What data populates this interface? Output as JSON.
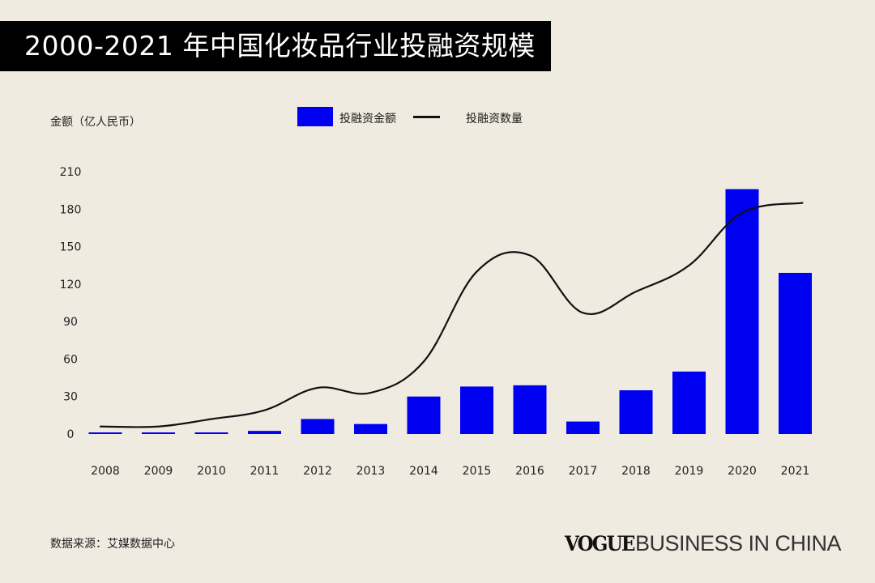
{
  "title": "2000-2021 年中国化妆品行业投融资规模",
  "unit_label": "金额（亿人民币）",
  "legend": {
    "bar_label": "投融资金额",
    "line_label": "投融资数量"
  },
  "source": "数据来源：艾媒数据中心",
  "brand": {
    "vogue": "VOGUE",
    "rest": "BUSINESS IN CHINA"
  },
  "colors": {
    "background": "#f0ebe1",
    "bar": "#0000f0",
    "line": "#111111",
    "title_bg": "#000000"
  },
  "chart_data": {
    "type": "bar",
    "title": "2000-2021 年中国化妆品行业投融资规模",
    "xlabel": "",
    "ylabel": "金额（亿人民币）",
    "ylim": [
      0,
      210
    ],
    "yticks": [
      0,
      30,
      60,
      90,
      120,
      150,
      180,
      210
    ],
    "grid": false,
    "legend_position": "top-center",
    "categories": [
      "2008",
      "2009",
      "2010",
      "2011",
      "2012",
      "2013",
      "2014",
      "2015",
      "2016",
      "2017",
      "2018",
      "2019",
      "2020",
      "2021"
    ],
    "series": [
      {
        "name": "投融资金额",
        "type": "bar",
        "values": [
          1,
          1,
          1,
          2.5,
          12,
          8,
          30,
          38,
          39,
          10,
          35,
          50,
          196,
          129
        ]
      },
      {
        "name": "投融资数量",
        "type": "line",
        "smooth": true,
        "values": [
          6,
          6,
          12,
          19,
          37,
          33,
          58,
          130,
          143,
          97,
          114,
          135,
          177,
          185
        ]
      }
    ]
  }
}
